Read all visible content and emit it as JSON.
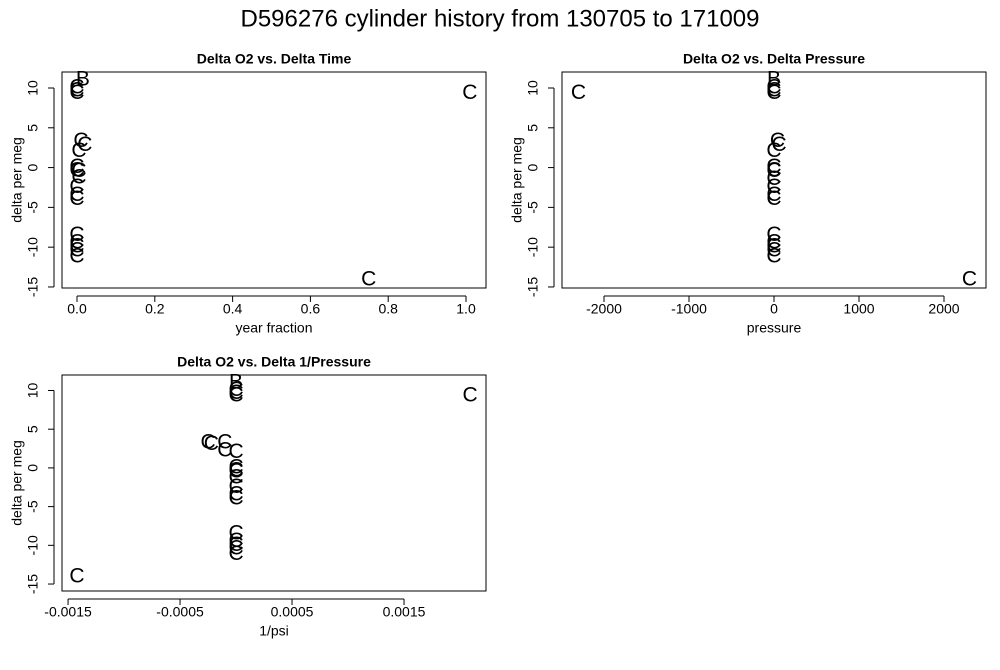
{
  "title": "D596276   cylinder history from  130705  to  171009",
  "chart_data": [
    {
      "type": "scatter",
      "title": "Delta O2 vs. Delta Time",
      "xlabel": "year fraction",
      "ylabel": "delta per meg",
      "xlim": [
        -0.0386,
        1.0514
      ],
      "ylim": [
        -15.13,
        12.01
      ],
      "xticks": [
        {
          "value": 0,
          "label": "0.0"
        },
        {
          "value": 0.2,
          "label": "0.2"
        },
        {
          "value": 0.4,
          "label": "0.4"
        },
        {
          "value": 0.6,
          "label": "0.6"
        },
        {
          "value": 0.8,
          "label": "0.8"
        },
        {
          "value": 1,
          "label": "1.0"
        }
      ],
      "yticks": [
        -15,
        -10,
        -5,
        0,
        5,
        10
      ],
      "series": [
        {
          "marker": "C",
          "color": "#006400",
          "x": [
            0,
            0,
            0,
            0.01,
            0.02,
            0.005,
            0,
            0,
            0,
            0,
            0,
            0,
            0,
            0,
            0,
            0,
            1.01,
            0.75
          ],
          "y": [
            10,
            9.6,
            9.3,
            3.3,
            2.8,
            2.0,
            0,
            -0.4,
            -2.5,
            -3.5,
            -4.0,
            -8.5,
            -9.5,
            -10,
            -10.5,
            -11.2,
            9.3,
            -14.1
          ]
        },
        {
          "marker": "C",
          "color": "#33dd33",
          "x": [
            0.005,
            0.005
          ],
          "y": [
            -0.5,
            -1.3
          ]
        },
        {
          "marker": "B",
          "color": "#33dd33",
          "x": [
            0.015
          ],
          "y": [
            11
          ]
        }
      ]
    },
    {
      "type": "scatter",
      "title": "Delta O2 vs. Delta Pressure",
      "xlabel": "pressure",
      "ylabel": "delta per meg",
      "xlim": [
        -2494,
        2494
      ],
      "ylim": [
        -15.13,
        12.01
      ],
      "xticks": [
        -2000,
        -1000,
        0,
        1000,
        2000
      ],
      "yticks": [
        -15,
        -10,
        -5,
        0,
        5,
        10
      ],
      "series": [
        {
          "marker": "C",
          "color": "#006400",
          "x": [
            0,
            0,
            0,
            40,
            60,
            0,
            0,
            0,
            0,
            0,
            0,
            0,
            0,
            0,
            0,
            0,
            -2300,
            2300
          ],
          "y": [
            10,
            9.6,
            9.3,
            3.3,
            2.8,
            2.0,
            0,
            -0.4,
            -2.5,
            -3.5,
            -4.0,
            -8.5,
            -9.5,
            -10,
            -10.5,
            -11.2,
            9.3,
            -14.1
          ]
        },
        {
          "marker": "C",
          "color": "#33dd33",
          "x": [
            0,
            0
          ],
          "y": [
            -0.5,
            -1.5
          ]
        },
        {
          "marker": "B",
          "color": "#33dd33",
          "x": [
            0
          ],
          "y": [
            11
          ]
        }
      ]
    },
    {
      "type": "scatter",
      "title": "Delta O2 vs. Delta 1/Pressure",
      "xlabel": "1/psi",
      "ylabel": "delta per meg",
      "xlim": [
        -0.001554,
        0.002232
      ],
      "ylim": [
        -15.9,
        12.0
      ],
      "xticks": [
        -0.0015,
        -0.0005,
        0.0005,
        0.0015
      ],
      "yticks": [
        -15,
        -10,
        -5,
        0,
        5,
        10
      ],
      "series": [
        {
          "marker": "C",
          "color": "#006400",
          "x": [
            0,
            0,
            0,
            -0.00025,
            -0.00022,
            -0.0001,
            -0.0001,
            0,
            0,
            0,
            0,
            0,
            0,
            0,
            0,
            0,
            0,
            0,
            0.00209,
            -0.00142
          ],
          "y": [
            10,
            9.6,
            9.3,
            3.2,
            3.0,
            3.2,
            2.2,
            2.0,
            0,
            -0.4,
            -2.5,
            -3.5,
            -4.0,
            -8.5,
            -9.5,
            -10,
            -10.5,
            -11.2,
            9.3,
            -14.1
          ]
        },
        {
          "marker": "C",
          "color": "#33dd33",
          "x": [
            0,
            0
          ],
          "y": [
            -0.5,
            -1.3
          ]
        },
        {
          "marker": "B",
          "color": "#33dd33",
          "x": [
            0
          ],
          "y": [
            11
          ]
        }
      ]
    }
  ]
}
